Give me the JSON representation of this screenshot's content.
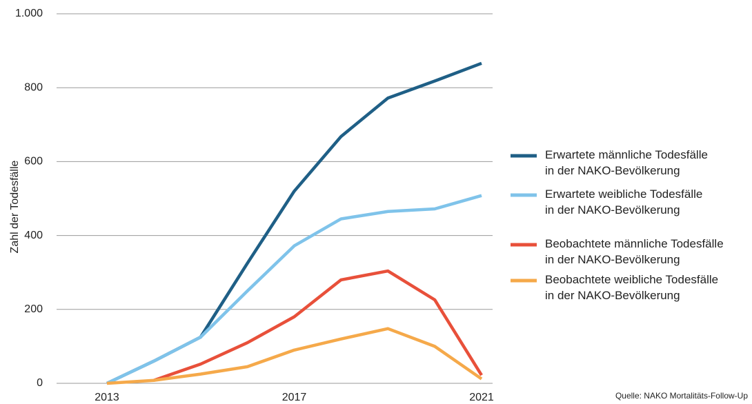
{
  "chart_data": {
    "type": "line",
    "y_label": "Zahl der Todesfälle",
    "source": "Quelle: NAKO Mortalitäts-Follow-Up",
    "x": [
      2013,
      2014,
      2015,
      2016,
      2017,
      2018,
      2019,
      2020,
      2021
    ],
    "xlim": [
      2013,
      2021
    ],
    "xticks": [
      2013,
      2017,
      2021
    ],
    "ylim": [
      0,
      1000
    ],
    "yticks": [
      0,
      200,
      400,
      600,
      800,
      {
        "value": 1000,
        "label": "1.000"
      }
    ],
    "grid": true,
    "series": [
      {
        "name": "Erwartete männliche Todesfälle in der NAKO-Bevölkerung",
        "color": "#1f5f86",
        "values": [
          0,
          60,
          125,
          325,
          520,
          668,
          772,
          818,
          866
        ]
      },
      {
        "name": "Erwartete weibliche Todesfälle in der NAKO-Bevölkerung",
        "color": "#7fc3ea",
        "values": [
          0,
          60,
          125,
          250,
          372,
          445,
          465,
          472,
          508
        ]
      },
      {
        "name": "Beobachtete männliche Todesfälle in der NAKO-Bevölkerung",
        "color": "#e8503a",
        "values": [
          null,
          8,
          52,
          110,
          180,
          280,
          304,
          226,
          22
        ]
      },
      {
        "name": "Beobachtete weibliche Todesfälle in der NAKO-Bevölkerung",
        "color": "#f5a94a",
        "values": [
          0,
          8,
          25,
          45,
          90,
          120,
          148,
          100,
          12
        ]
      }
    ]
  }
}
